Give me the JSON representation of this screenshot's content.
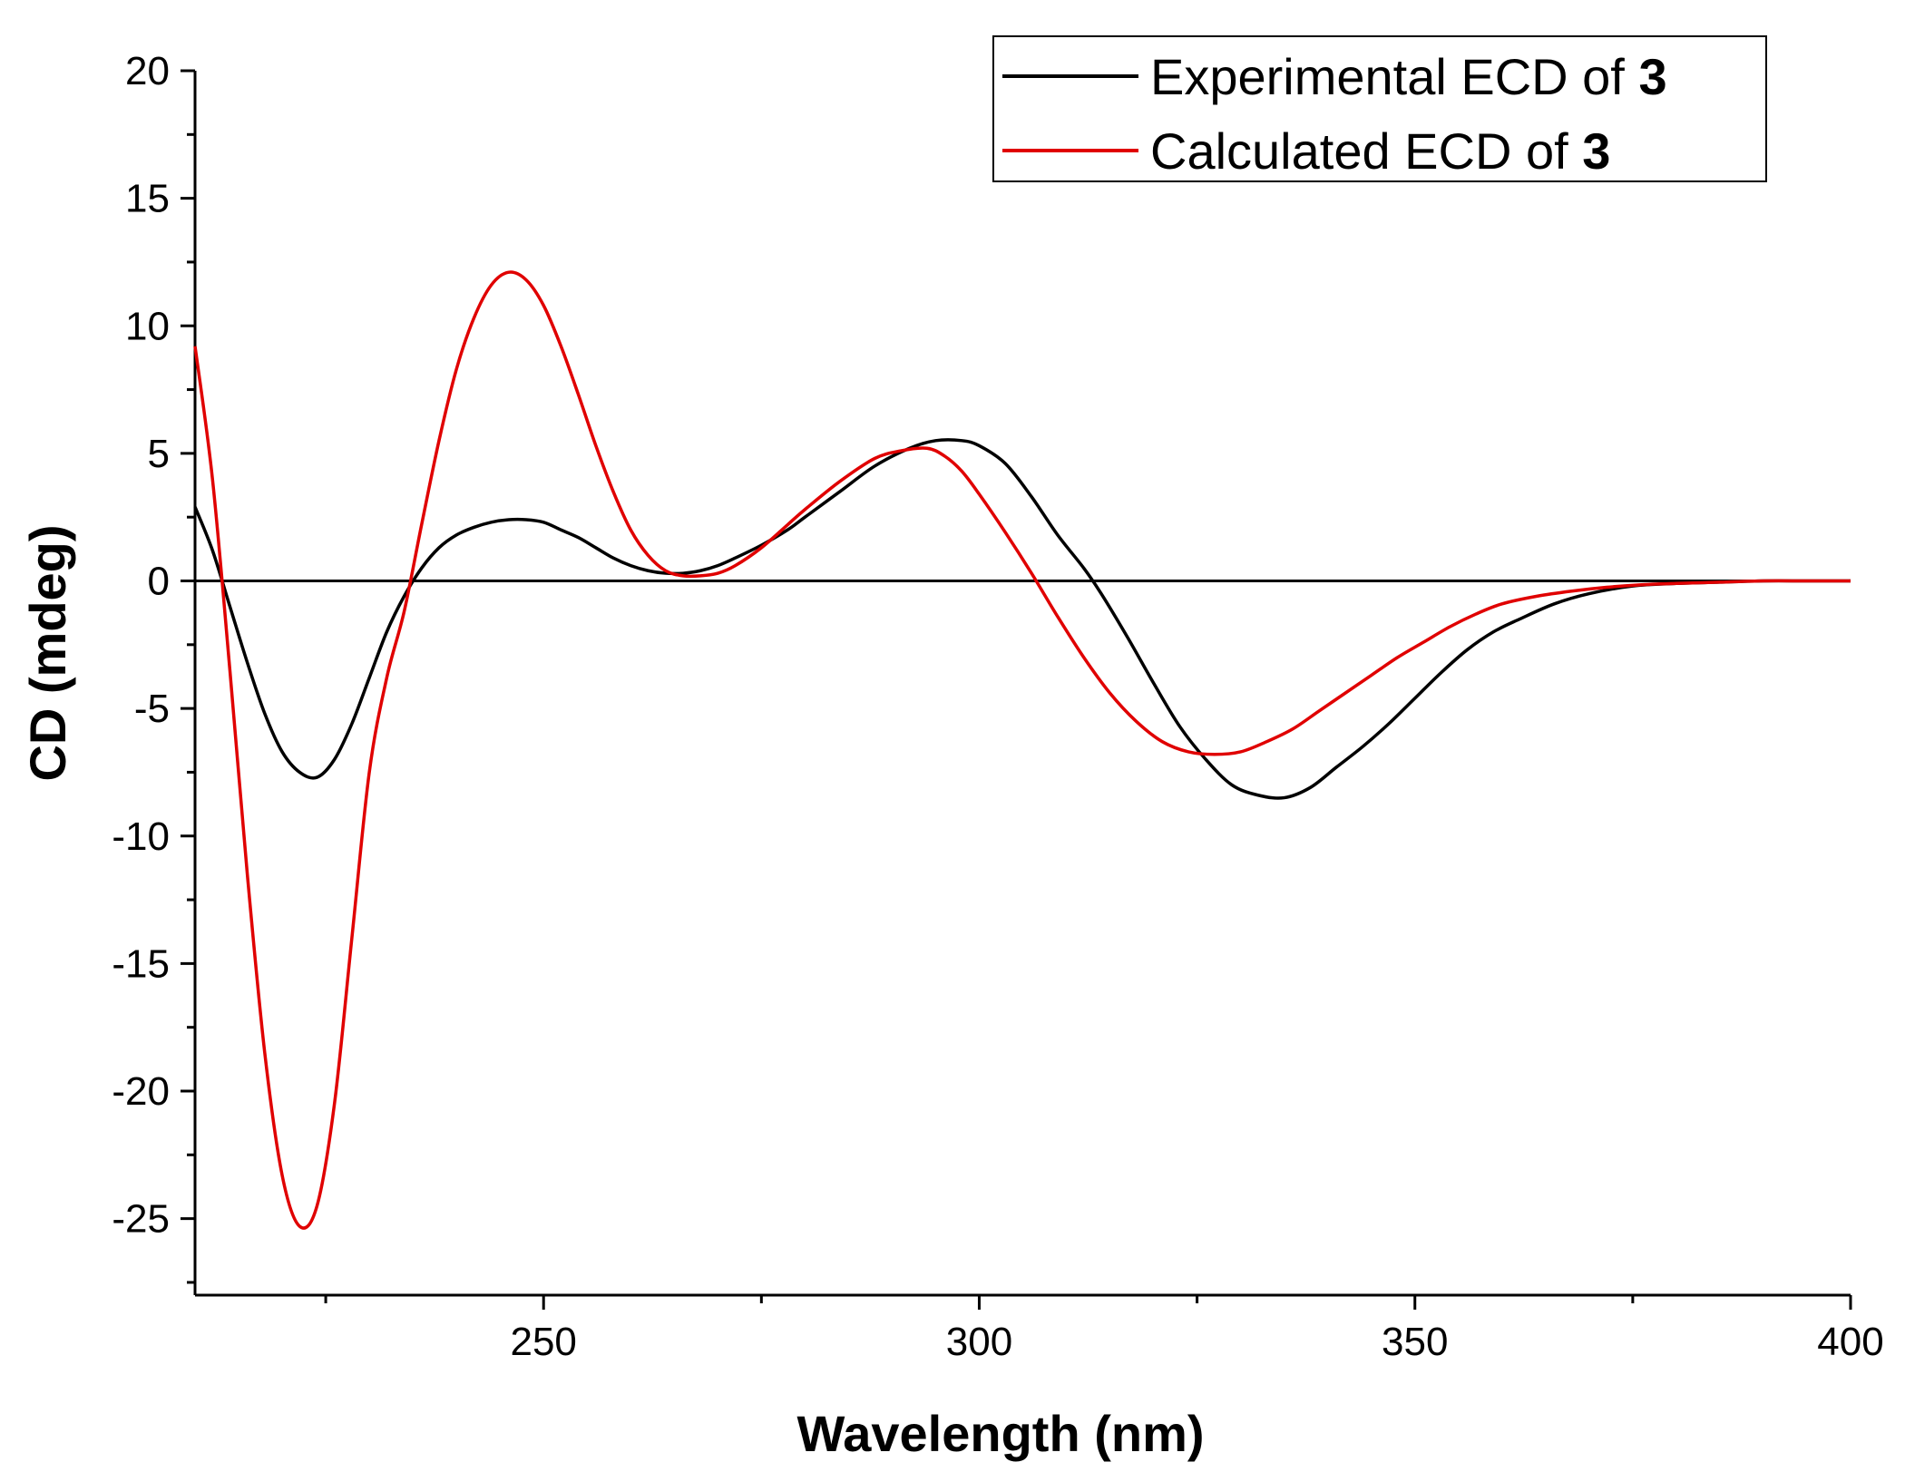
{
  "chart_data": {
    "type": "line",
    "title": "",
    "xlabel": "Wavelength (nm)",
    "ylabel": "CD (mdeg)",
    "xlim": [
      210,
      400
    ],
    "ylim": [
      -28,
      20
    ],
    "x_major_ticks": [
      250,
      300,
      350,
      400
    ],
    "x_minor_ticks": [
      225,
      275,
      325,
      375
    ],
    "x_tick_labels": [
      "250",
      "300",
      "350",
      "400"
    ],
    "y_major_ticks": [
      20,
      15,
      10,
      5,
      0,
      -5,
      -10,
      -15,
      -20,
      -25
    ],
    "y_tick_labels": [
      "20",
      "15",
      "10",
      "5",
      "0",
      "-5",
      "-10",
      "-15",
      "-20",
      "-25"
    ],
    "zero_line": 0,
    "legend_position": "top-right",
    "colors": {
      "experimental": "#000000",
      "calculated": "#e00000",
      "axis": "#000000"
    },
    "series": [
      {
        "name": "Experimental ECD of 3",
        "label_prefix": "Experimental ECD of ",
        "label_bold": "3",
        "x": [
          210,
          212,
          214,
          216,
          218,
          220,
          222,
          224,
          226,
          228,
          230,
          232,
          234,
          236,
          238,
          240,
          242,
          244,
          246,
          248,
          250,
          252,
          254,
          256,
          258,
          260,
          262,
          264,
          266,
          268,
          270,
          272,
          275,
          278,
          280,
          284,
          288,
          292,
          295,
          298,
          300,
          303,
          306,
          309,
          312,
          314,
          317,
          320,
          323,
          326,
          329,
          332,
          335,
          338,
          341,
          344,
          347,
          350,
          353,
          356,
          359,
          362,
          366,
          370,
          375,
          380,
          385,
          390,
          395,
          400
        ],
        "y": [
          2.9,
          1.2,
          -1.0,
          -3.2,
          -5.2,
          -6.7,
          -7.5,
          -7.7,
          -7.0,
          -5.6,
          -3.8,
          -2.0,
          -0.6,
          0.5,
          1.3,
          1.8,
          2.1,
          2.3,
          2.4,
          2.4,
          2.3,
          2.0,
          1.7,
          1.3,
          0.9,
          0.6,
          0.4,
          0.3,
          0.3,
          0.4,
          0.6,
          0.9,
          1.4,
          2.0,
          2.5,
          3.5,
          4.5,
          5.2,
          5.5,
          5.5,
          5.3,
          4.6,
          3.3,
          1.8,
          0.5,
          -0.5,
          -2.2,
          -4.0,
          -5.7,
          -7.0,
          -8.0,
          -8.4,
          -8.5,
          -8.1,
          -7.3,
          -6.5,
          -5.6,
          -4.6,
          -3.6,
          -2.7,
          -2.0,
          -1.5,
          -0.9,
          -0.5,
          -0.2,
          -0.1,
          -0.05,
          0.0,
          0.0,
          0.0
        ]
      },
      {
        "name": "Calculated ECD of 3",
        "label_prefix": "Calculated ECD of ",
        "label_bold": "3",
        "x": [
          210,
          212,
          214,
          216,
          218,
          220,
          222,
          224,
          226,
          228,
          230,
          232,
          234,
          236,
          238,
          240,
          242,
          244,
          246,
          248,
          250,
          252,
          254,
          256,
          258,
          260,
          262,
          264,
          266,
          268,
          270,
          272,
          275,
          278,
          280,
          284,
          288,
          291,
          294,
          296,
          298,
          300,
          303,
          306,
          309,
          312,
          315,
          318,
          321,
          324,
          327,
          330,
          333,
          336,
          339,
          342,
          345,
          348,
          351,
          354,
          357,
          360,
          364,
          368,
          372,
          376,
          380,
          385,
          390,
          395,
          400
        ],
        "y": [
          9.2,
          4.0,
          -3.5,
          -11.5,
          -18.5,
          -23.3,
          -25.3,
          -24.5,
          -20.5,
          -14.0,
          -7.5,
          -3.8,
          -1.2,
          2.2,
          5.5,
          8.3,
          10.3,
          11.6,
          12.1,
          11.8,
          10.8,
          9.2,
          7.3,
          5.3,
          3.5,
          2.0,
          1.0,
          0.4,
          0.2,
          0.2,
          0.3,
          0.6,
          1.3,
          2.2,
          2.8,
          3.9,
          4.8,
          5.1,
          5.2,
          4.9,
          4.3,
          3.4,
          1.9,
          0.3,
          -1.4,
          -3.0,
          -4.4,
          -5.5,
          -6.3,
          -6.7,
          -6.8,
          -6.7,
          -6.3,
          -5.8,
          -5.1,
          -4.4,
          -3.7,
          -3.0,
          -2.4,
          -1.8,
          -1.3,
          -0.9,
          -0.6,
          -0.4,
          -0.25,
          -0.15,
          -0.1,
          -0.05,
          0.0,
          0.0,
          0.0
        ]
      }
    ]
  }
}
